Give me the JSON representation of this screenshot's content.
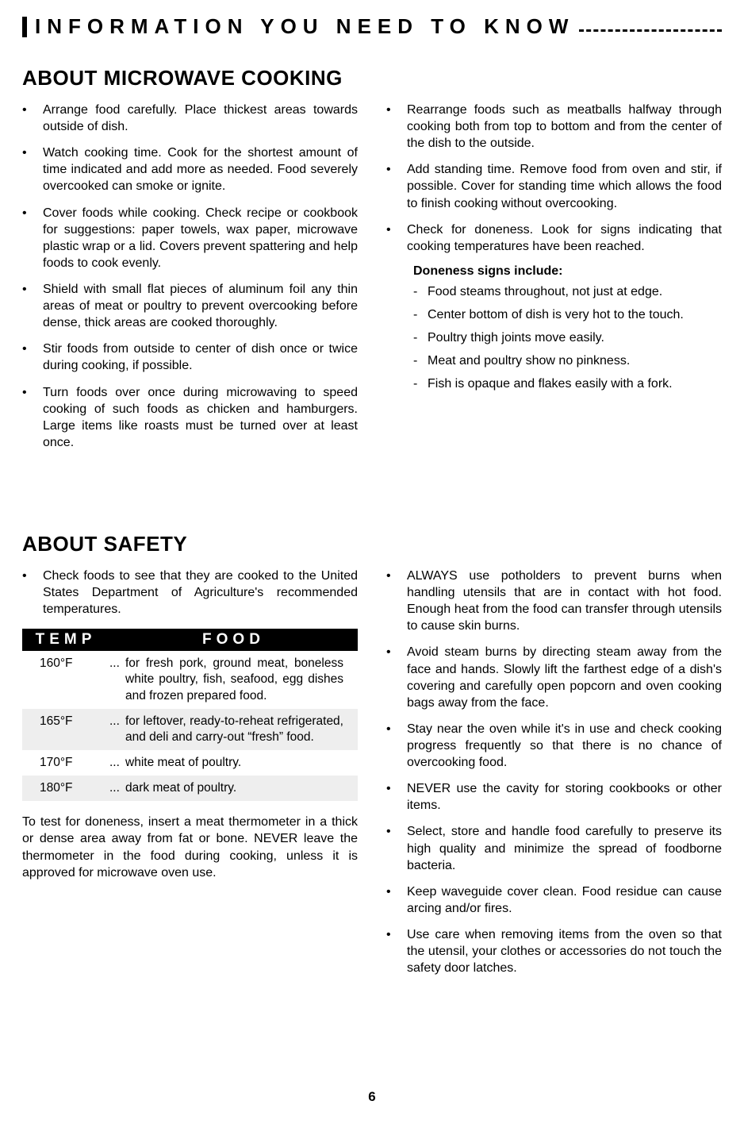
{
  "header": {
    "title": "INFORMATION YOU NEED TO KNOW"
  },
  "section_cooking": {
    "heading": "ABOUT MICROWAVE COOKING",
    "left_bullets": [
      "Arrange food carefully. Place thickest areas towards outside of dish.",
      "Watch cooking time. Cook for the shortest amount of time indicated and add more as needed. Food severely overcooked can smoke or ignite.",
      "Cover foods while cooking. Check recipe or cookbook for suggestions: paper towels, wax paper, microwave plastic wrap or a lid. Covers prevent spattering and help foods to cook evenly.",
      "Shield with small flat pieces of aluminum foil any thin areas of meat or poultry to prevent overcooking before dense, thick areas are cooked thoroughly.",
      "Stir foods from outside to center of dish once or twice during cooking, if possible.",
      "Turn foods over once during microwaving to speed cooking of such foods as chicken and hamburgers. Large items like roasts must be turned over at least once."
    ],
    "right_bullets": [
      "Rearrange foods such as meatballs halfway through cooking both from top to bottom and from the center of the dish to the outside.",
      "Add standing time. Remove food from oven and stir, if possible. Cover for standing time which allows the food to finish cooking without overcooking.",
      "Check for doneness. Look for signs indicating that cooking temperatures have been reached."
    ],
    "doneness_heading": "Doneness signs include:",
    "doneness_list": [
      "Food steams throughout, not just at edge.",
      "Center bottom of dish is very hot to the touch.",
      "Poultry thigh joints move easily.",
      "Meat and poultry show no pinkness.",
      "Fish is opaque and flakes easily with a fork."
    ]
  },
  "section_safety": {
    "heading": "ABOUT SAFETY",
    "left_intro": "Check foods to see that they are cooked to the United States Department of Agriculture's recommended temperatures.",
    "table": {
      "col_temp": "TEMP",
      "col_food": "FOOD",
      "rows": [
        {
          "temp": "160°F",
          "food": "for fresh pork, ground meat, boneless white poultry, fish, seafood, egg dishes and frozen prepared food."
        },
        {
          "temp": "165°F",
          "food": "for leftover, ready-to-reheat refrigerated, and deli and carry-out “fresh” food."
        },
        {
          "temp": "170°F",
          "food": "white meat of poultry."
        },
        {
          "temp": "180°F",
          "food": "dark meat of poultry."
        }
      ]
    },
    "left_outro": "To test for doneness, insert a meat thermometer in a thick or dense area away from fat or bone. NEVER leave the thermometer in the food during cooking, unless it is approved for microwave oven use.",
    "right_bullets": [
      "ALWAYS use potholders to prevent burns when handling utensils that are in contact with hot food. Enough heat from the food can transfer through utensils to cause skin burns.",
      "Avoid steam burns by directing steam away from the face and hands. Slowly lift the farthest edge of a dish's covering and carefully open popcorn and oven cooking bags away from the face.",
      "Stay near the oven while it's in use and check cooking progress frequently so that there is no chance of overcooking food.",
      "NEVER use the cavity for storing cookbooks or other items.",
      "Select, store and handle food carefully to preserve its high quality and minimize the spread of foodborne bacteria.",
      "Keep waveguide cover clean. Food residue can cause arcing and/or fires.",
      "Use care when removing items from the oven so that the utensil, your clothes or accessories do not touch the safety door latches."
    ]
  },
  "page_number": "6",
  "ellipsis": "..."
}
